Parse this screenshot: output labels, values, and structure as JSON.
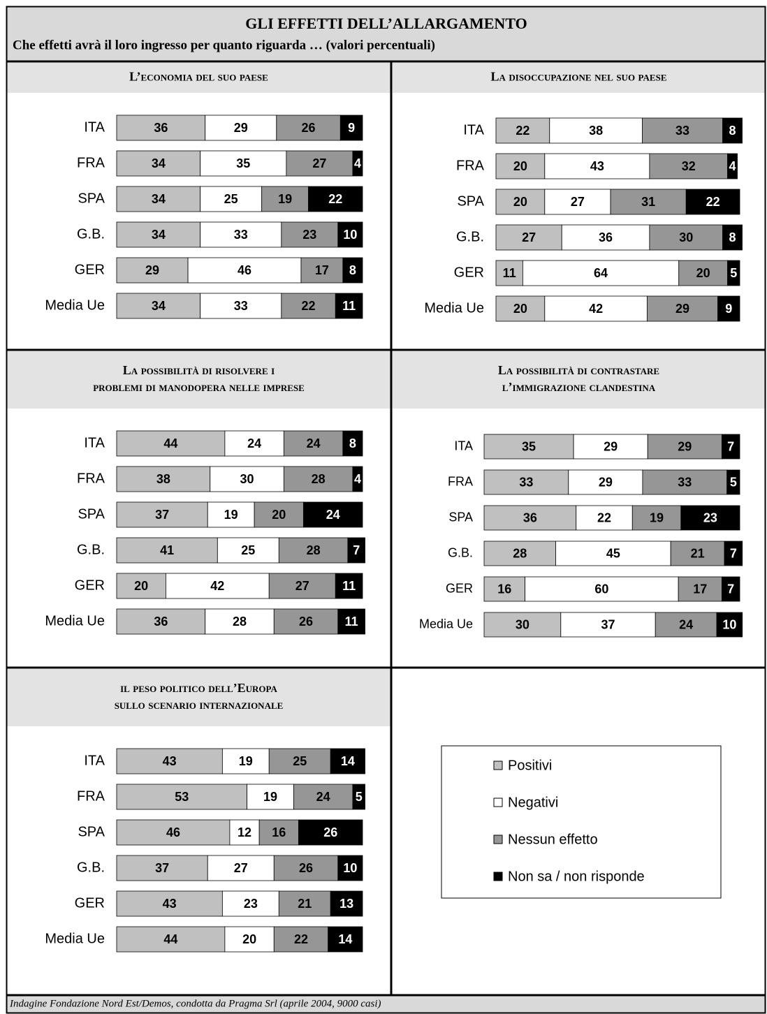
{
  "title": "GLI EFFETTI DELL’ALLARGAMENTO",
  "subtitle": "Che effetti avrà il loro ingresso per quanto riguarda … (valori percentuali)",
  "source": "Indagine Fondazione Nord Est/Demos, condotta da Pragma Srl  (aprile 2004, 9000 casi)",
  "legend": [
    {
      "name": "Positivi",
      "color": "#c0c0c0"
    },
    {
      "name": "Negativi",
      "color": "#ffffff"
    },
    {
      "name": "Nessun effetto",
      "color": "#969696"
    },
    {
      "name": "Non sa / non risponde",
      "color": "#000000"
    }
  ],
  "chart_data": [
    {
      "type": "bar",
      "orientation": "horizontal",
      "stacked": true,
      "title": [
        "L’economia del suo paese"
      ],
      "categories": [
        "ITA",
        "FRA",
        "SPA",
        "G.B.",
        "GER",
        "Media Ue"
      ],
      "series": [
        {
          "values": [
            36,
            34,
            34,
            34,
            29,
            34
          ]
        },
        {
          "values": [
            29,
            35,
            25,
            33,
            46,
            33
          ]
        },
        {
          "values": [
            26,
            27,
            19,
            23,
            17,
            22
          ]
        },
        {
          "values": [
            9,
            4,
            22,
            10,
            8,
            11
          ]
        }
      ]
    },
    {
      "type": "bar",
      "orientation": "horizontal",
      "stacked": true,
      "title": [
        "La disoccupazione nel suo paese"
      ],
      "categories": [
        "ITA",
        "FRA",
        "SPA",
        "G.B.",
        "GER",
        "Media Ue"
      ],
      "series": [
        {
          "values": [
            22,
            20,
            20,
            27,
            11,
            20
          ]
        },
        {
          "values": [
            38,
            43,
            27,
            36,
            64,
            42
          ]
        },
        {
          "values": [
            33,
            32,
            31,
            30,
            20,
            29
          ]
        },
        {
          "values": [
            8,
            4,
            22,
            8,
            5,
            9
          ]
        }
      ]
    },
    {
      "type": "bar",
      "orientation": "horizontal",
      "stacked": true,
      "title": [
        "La possibilità di risolvere i",
        "problemi di manodopera nelle imprese"
      ],
      "categories": [
        "ITA",
        "FRA",
        "SPA",
        "G.B.",
        "GER",
        "Media Ue"
      ],
      "series": [
        {
          "values": [
            44,
            38,
            37,
            41,
            20,
            36
          ]
        },
        {
          "values": [
            24,
            30,
            19,
            25,
            42,
            28
          ]
        },
        {
          "values": [
            24,
            28,
            20,
            28,
            27,
            26
          ]
        },
        {
          "values": [
            8,
            4,
            24,
            7,
            11,
            11
          ]
        }
      ]
    },
    {
      "type": "bar",
      "orientation": "horizontal",
      "stacked": true,
      "title": [
        "La possibilità di contrastare",
        "l’immigrazione clandestina"
      ],
      "categories": [
        "ITA",
        "FRA",
        "SPA",
        "G.B.",
        "GER",
        "Media Ue"
      ],
      "series": [
        {
          "values": [
            35,
            33,
            36,
            28,
            16,
            30
          ]
        },
        {
          "values": [
            29,
            29,
            22,
            45,
            60,
            37
          ]
        },
        {
          "values": [
            29,
            33,
            19,
            21,
            17,
            24
          ]
        },
        {
          "values": [
            7,
            5,
            23,
            7,
            7,
            10
          ]
        }
      ]
    },
    {
      "type": "bar",
      "orientation": "horizontal",
      "stacked": true,
      "title": [
        "il peso politico dell’Europa",
        "sullo scenario internazionale"
      ],
      "categories": [
        "ITA",
        "FRA",
        "SPA",
        "G.B.",
        "GER",
        "Media Ue"
      ],
      "series": [
        {
          "values": [
            43,
            53,
            46,
            37,
            43,
            44
          ]
        },
        {
          "values": [
            19,
            19,
            12,
            27,
            23,
            20
          ]
        },
        {
          "values": [
            25,
            24,
            16,
            26,
            21,
            22
          ]
        },
        {
          "values": [
            14,
            5,
            26,
            10,
            13,
            14
          ]
        }
      ]
    }
  ]
}
